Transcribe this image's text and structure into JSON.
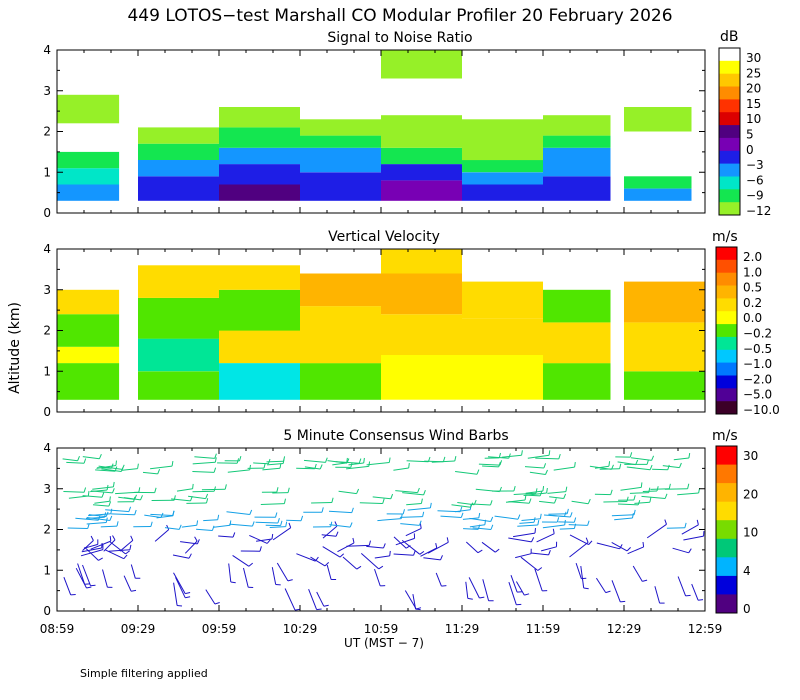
{
  "figure": {
    "title": "449 LOTOS−test Marshall CO Modular Profiler 20 February 2026",
    "ylabel": "Altitude (km)",
    "xlabel": "UT  (MST − 7)",
    "note": "Simple filtering applied"
  },
  "chart_data": [
    {
      "type": "heatmap",
      "title": "Signal to Noise Ratio",
      "ylabel": "Altitude (km)",
      "ylim": [
        0,
        4
      ],
      "yticks": [
        "0",
        "1",
        "2",
        "3",
        "4"
      ],
      "xticks": [
        "08:59",
        "09:29",
        "09:59",
        "10:29",
        "10:59",
        "11:29",
        "11:59",
        "12:29",
        "12:59"
      ],
      "colorbar": {
        "unit": "dB",
        "labels": [
          "30",
          "25",
          "20",
          "15",
          "10",
          "5",
          "0",
          "−3",
          "−6",
          "−9",
          "−12"
        ],
        "colors": [
          "#ffffff",
          "#ffff00",
          "#ffc800",
          "#ff8c00",
          "#ff3200",
          "#dc0000",
          "#500080",
          "#7800b4",
          "#1e1ee6",
          "#1496ff",
          "#00e6c8",
          "#14e650",
          "#96f028"
        ]
      },
      "blocks": [
        {
          "t0": "08:59",
          "t1": "09:22",
          "layers": [
            {
              "z": [
                0.3,
                0.7
              ],
              "color": "#1496ff"
            },
            {
              "z": [
                0.7,
                1.1
              ],
              "color": "#00e6c8"
            },
            {
              "z": [
                1.1,
                1.5
              ],
              "color": "#14e650"
            },
            {
              "z": [
                2.2,
                2.9
              ],
              "color": "#96f028"
            }
          ]
        },
        {
          "t0": "09:29",
          "t1": "09:59",
          "layers": [
            {
              "z": [
                0.3,
                0.9
              ],
              "color": "#1e1ee6"
            },
            {
              "z": [
                0.9,
                1.3
              ],
              "color": "#1496ff"
            },
            {
              "z": [
                1.3,
                1.7
              ],
              "color": "#14e650"
            },
            {
              "z": [
                1.7,
                2.1
              ],
              "color": "#96f028"
            }
          ]
        },
        {
          "t0": "09:59",
          "t1": "10:29",
          "layers": [
            {
              "z": [
                0.3,
                0.7
              ],
              "color": "#500080"
            },
            {
              "z": [
                0.7,
                1.2
              ],
              "color": "#1e1ee6"
            },
            {
              "z": [
                1.2,
                1.6
              ],
              "color": "#1496ff"
            },
            {
              "z": [
                1.6,
                2.1
              ],
              "color": "#14e650"
            },
            {
              "z": [
                2.1,
                2.6
              ],
              "color": "#96f028"
            }
          ]
        },
        {
          "t0": "10:29",
          "t1": "10:59",
          "layers": [
            {
              "z": [
                0.3,
                1.0
              ],
              "color": "#1e1ee6"
            },
            {
              "z": [
                1.0,
                1.6
              ],
              "color": "#1496ff"
            },
            {
              "z": [
                1.6,
                1.9
              ],
              "color": "#14e650"
            },
            {
              "z": [
                1.9,
                2.3
              ],
              "color": "#96f028"
            }
          ]
        },
        {
          "t0": "10:59",
          "t1": "11:29",
          "layers": [
            {
              "z": [
                0.3,
                0.8
              ],
              "color": "#7800b4"
            },
            {
              "z": [
                0.8,
                1.2
              ],
              "color": "#1e1ee6"
            },
            {
              "z": [
                1.2,
                1.6
              ],
              "color": "#14e650"
            },
            {
              "z": [
                1.6,
                2.4
              ],
              "color": "#96f028"
            },
            {
              "z": [
                3.3,
                4.0
              ],
              "color": "#96f028"
            }
          ]
        },
        {
          "t0": "11:29",
          "t1": "11:59",
          "layers": [
            {
              "z": [
                0.3,
                0.7
              ],
              "color": "#1e1ee6"
            },
            {
              "z": [
                0.7,
                1.0
              ],
              "color": "#1496ff"
            },
            {
              "z": [
                1.0,
                1.3
              ],
              "color": "#14e650"
            },
            {
              "z": [
                1.3,
                2.3
              ],
              "color": "#96f028"
            }
          ]
        },
        {
          "t0": "11:59",
          "t1": "12:24",
          "layers": [
            {
              "z": [
                0.3,
                0.9
              ],
              "color": "#1e1ee6"
            },
            {
              "z": [
                0.9,
                1.6
              ],
              "color": "#1496ff"
            },
            {
              "z": [
                1.6,
                1.9
              ],
              "color": "#14e650"
            },
            {
              "z": [
                1.9,
                2.4
              ],
              "color": "#96f028"
            }
          ]
        },
        {
          "t0": "12:29",
          "t1": "12:54",
          "layers": [
            {
              "z": [
                0.3,
                0.6
              ],
              "color": "#1496ff"
            },
            {
              "z": [
                0.6,
                0.9
              ],
              "color": "#14e650"
            },
            {
              "z": [
                2.0,
                2.6
              ],
              "color": "#96f028"
            }
          ]
        }
      ]
    },
    {
      "type": "heatmap",
      "title": "Vertical Velocity",
      "ylabel": "Altitude (km)",
      "ylim": [
        0,
        4
      ],
      "yticks": [
        "0",
        "1",
        "2",
        "3",
        "4"
      ],
      "xticks": [
        "08:59",
        "09:29",
        "09:59",
        "10:29",
        "10:59",
        "11:29",
        "11:59",
        "12:29",
        "12:59"
      ],
      "colorbar": {
        "unit": "m/s",
        "labels": [
          "2.0",
          "1.0",
          "0.5",
          "0.2",
          "0.0",
          "−0.2",
          "−0.5",
          "−1.0",
          "−2.0",
          "−5.0",
          "−10.0"
        ],
        "colors": [
          "#ff0000",
          "#ff5000",
          "#ff8c00",
          "#ffb400",
          "#ffdc00",
          "#ffff00",
          "#50e600",
          "#00e696",
          "#00c8ff",
          "#0078ff",
          "#0000dc",
          "#500096",
          "#3c0028"
        ]
      },
      "blocks": [
        {
          "t0": "08:59",
          "t1": "09:22",
          "layers": [
            {
              "z": [
                0.3,
                1.2
              ],
              "color": "#50e600"
            },
            {
              "z": [
                1.2,
                1.6
              ],
              "color": "#ffff00"
            },
            {
              "z": [
                1.6,
                2.4
              ],
              "color": "#50e600"
            },
            {
              "z": [
                2.4,
                3.0
              ],
              "color": "#ffdc00"
            }
          ]
        },
        {
          "t0": "09:29",
          "t1": "09:59",
          "layers": [
            {
              "z": [
                0.3,
                1.0
              ],
              "color": "#50e600"
            },
            {
              "z": [
                1.0,
                1.8
              ],
              "color": "#00e696"
            },
            {
              "z": [
                1.8,
                2.8
              ],
              "color": "#50e600"
            },
            {
              "z": [
                2.8,
                3.6
              ],
              "color": "#ffdc00"
            }
          ]
        },
        {
          "t0": "09:59",
          "t1": "10:29",
          "layers": [
            {
              "z": [
                0.3,
                1.2
              ],
              "color": "#00e6e6"
            },
            {
              "z": [
                1.2,
                2.0
              ],
              "color": "#ffdc00"
            },
            {
              "z": [
                2.0,
                3.0
              ],
              "color": "#50e600"
            },
            {
              "z": [
                3.0,
                3.6
              ],
              "color": "#ffdc00"
            }
          ]
        },
        {
          "t0": "10:29",
          "t1": "10:59",
          "layers": [
            {
              "z": [
                0.3,
                1.2
              ],
              "color": "#50e600"
            },
            {
              "z": [
                1.2,
                2.6
              ],
              "color": "#ffdc00"
            },
            {
              "z": [
                2.6,
                3.4
              ],
              "color": "#ffb400"
            }
          ]
        },
        {
          "t0": "10:59",
          "t1": "11:29",
          "layers": [
            {
              "z": [
                0.3,
                1.4
              ],
              "color": "#ffff00"
            },
            {
              "z": [
                1.4,
                2.4
              ],
              "color": "#ffdc00"
            },
            {
              "z": [
                2.4,
                3.4
              ],
              "color": "#ffb400"
            },
            {
              "z": [
                3.4,
                4.0
              ],
              "color": "#ffdc00"
            }
          ]
        },
        {
          "t0": "11:29",
          "t1": "11:59",
          "layers": [
            {
              "z": [
                0.3,
                1.4
              ],
              "color": "#ffff00"
            },
            {
              "z": [
                1.4,
                2.3
              ],
              "color": "#ffdc00"
            },
            {
              "z": [
                2.3,
                3.2
              ],
              "color": "#ffdc00"
            }
          ]
        },
        {
          "t0": "11:59",
          "t1": "12:24",
          "layers": [
            {
              "z": [
                0.3,
                1.2
              ],
              "color": "#50e600"
            },
            {
              "z": [
                1.2,
                2.2
              ],
              "color": "#ffdc00"
            },
            {
              "z": [
                2.2,
                3.0
              ],
              "color": "#50e600"
            }
          ]
        },
        {
          "t0": "12:29",
          "t1": "12:59",
          "layers": [
            {
              "z": [
                0.3,
                1.0
              ],
              "color": "#50e600"
            },
            {
              "z": [
                1.0,
                2.2
              ],
              "color": "#ffdc00"
            },
            {
              "z": [
                2.2,
                3.2
              ],
              "color": "#ffb400"
            }
          ]
        }
      ]
    },
    {
      "type": "scatter",
      "title": "5 Minute Consensus Wind Barbs",
      "ylabel": "Altitude (km)",
      "ylim": [
        0,
        4
      ],
      "yticks": [
        "0",
        "1",
        "2",
        "3",
        "4"
      ],
      "xticks": [
        "08:59",
        "09:29",
        "09:59",
        "10:29",
        "10:59",
        "11:29",
        "11:59",
        "12:29",
        "12:59"
      ],
      "colorbar": {
        "unit": "m/s",
        "labels": [
          "30",
          "20",
          "10",
          "4",
          "0"
        ],
        "colors": [
          "#ff0000",
          "#ff7800",
          "#ffb400",
          "#ffdc00",
          "#78dc00",
          "#00c878",
          "#00b4ff",
          "#0000dc",
          "#500080"
        ]
      },
      "barb_groups": [
        {
          "z": [
            0.0,
            1.2
          ],
          "color": "#1e14c8",
          "dir": "steep"
        },
        {
          "z": [
            1.3,
            1.9
          ],
          "color": "#1e14c8",
          "dir": "mixed"
        },
        {
          "z": [
            2.0,
            2.5
          ],
          "color": "#14a0e6",
          "dir": "flat"
        },
        {
          "z": [
            2.6,
            3.0
          ],
          "color": "#14c878",
          "dir": "flat"
        },
        {
          "z": [
            3.4,
            3.8
          ],
          "color": "#14c878",
          "dir": "flat"
        }
      ]
    }
  ]
}
